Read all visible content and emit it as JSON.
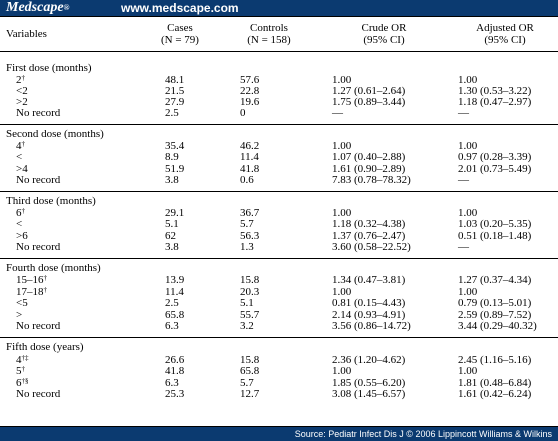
{
  "banner": {
    "brand": "Medscape",
    "reg": "®",
    "site": "www.medscape.com"
  },
  "header": {
    "variables": "Variables",
    "cases": "Cases",
    "cases_n": "(N = 79)",
    "controls": "Controls",
    "controls_n": "(N = 158)",
    "crude": "Crude OR",
    "crude_ci": "(95% CI)",
    "adjusted": "Adjusted OR",
    "adjusted_ci": "(95% CI)"
  },
  "sections": [
    {
      "title": "First dose (months)",
      "rows": [
        {
          "label": "2",
          "sup": "†",
          "cases": "48.1",
          "controls": "57.6",
          "crude": "1.00",
          "adjusted": "1.00"
        },
        {
          "label": "<2",
          "sup": "",
          "cases": "21.5",
          "controls": "22.8",
          "crude": "1.27 (0.61–2.64)",
          "adjusted": "1.30 (0.53–3.22)"
        },
        {
          "label": ">2",
          "sup": "",
          "cases": "27.9",
          "controls": "19.6",
          "crude": "1.75 (0.89–3.44)",
          "adjusted": "1.18 (0.47–2.97)"
        },
        {
          "label": "No record",
          "sup": "",
          "cases": "2.5",
          "controls": "0",
          "crude": "—",
          "adjusted": "—"
        }
      ]
    },
    {
      "title": "Second dose (months)",
      "rows": [
        {
          "label": "4",
          "sup": "†",
          "cases": "35.4",
          "controls": "46.2",
          "crude": "1.00",
          "adjusted": "1.00"
        },
        {
          "label": "<",
          "sup": "",
          "cases": "8.9",
          "controls": "11.4",
          "crude": "1.07 (0.40–2.88)",
          "adjusted": "0.97 (0.28–3.39)"
        },
        {
          "label": ">4",
          "sup": "",
          "cases": "51.9",
          "controls": "41.8",
          "crude": "1.61 (0.90–2.89)",
          "adjusted": "2.01 (0.73–5.49)"
        },
        {
          "label": "No record",
          "sup": "",
          "cases": "3.8",
          "controls": "0.6",
          "crude": "7.83 (0.78–78.32)",
          "adjusted": "—"
        }
      ]
    },
    {
      "title": "Third dose (months)",
      "rows": [
        {
          "label": "6",
          "sup": "†",
          "cases": "29.1",
          "controls": "36.7",
          "crude": "1.00",
          "adjusted": "1.00"
        },
        {
          "label": "<",
          "sup": "",
          "cases": "5.1",
          "controls": "5.7",
          "crude": "1.18 (0.32–4.38)",
          "adjusted": "1.03 (0.20–5.35)"
        },
        {
          "label": ">6",
          "sup": "",
          "cases": "62",
          "controls": "56.3",
          "crude": "1.37 (0.76–2.47)",
          "adjusted": "0.51 (0.18–1.48)"
        },
        {
          "label": "No record",
          "sup": "",
          "cases": "3.8",
          "controls": "1.3",
          "crude": "3.60 (0.58–22.52)",
          "adjusted": "—"
        }
      ]
    },
    {
      "title": "Fourth dose (months)",
      "rows": [
        {
          "label": "15–16",
          "sup": "†",
          "cases": "13.9",
          "controls": "15.8",
          "crude": "1.34 (0.47–3.81)",
          "adjusted": "1.27 (0.37–4.34)"
        },
        {
          "label": "17–18",
          "sup": "†",
          "cases": "11.4",
          "controls": "20.3",
          "crude": "1.00",
          "adjusted": "1.00"
        },
        {
          "label": "<5",
          "sup": "",
          "cases": "2.5",
          "controls": "5.1",
          "crude": "0.81 (0.15–4.43)",
          "adjusted": "0.79 (0.13–5.01)"
        },
        {
          "label": ">",
          "sup": "",
          "cases": "65.8",
          "controls": "55.7",
          "crude": "2.14 (0.93–4.91)",
          "adjusted": "2.59 (0.89–7.52)"
        },
        {
          "label": "No record",
          "sup": "",
          "cases": "6.3",
          "controls": "3.2",
          "crude": "3.56 (0.86–14.72)",
          "adjusted": "3.44 (0.29–40.32)"
        }
      ]
    },
    {
      "title": "Fifth dose (years)",
      "rows": [
        {
          "label": "4",
          "sup": "†‡",
          "cases": "26.6",
          "controls": "15.8",
          "crude": "2.36 (1.20–4.62)",
          "adjusted": "2.45 (1.16–5.16)"
        },
        {
          "label": "5",
          "sup": "†",
          "cases": "41.8",
          "controls": "65.8",
          "crude": "1.00",
          "adjusted": "1.00"
        },
        {
          "label": "6",
          "sup": "†§",
          "cases": "6.3",
          "controls": "5.7",
          "crude": "1.85 (0.55–6.20)",
          "adjusted": "1.81 (0.48–6.84)"
        },
        {
          "label": "No record",
          "sup": "",
          "cases": "25.3",
          "controls": "12.7",
          "crude": "3.08 (1.45–6.57)",
          "adjusted": "1.61 (0.42–6.24)"
        }
      ]
    }
  ],
  "footer": {
    "source": "Source: Pediatr Infect Dis J © 2006 Lippincott Williams & Wilkins"
  }
}
